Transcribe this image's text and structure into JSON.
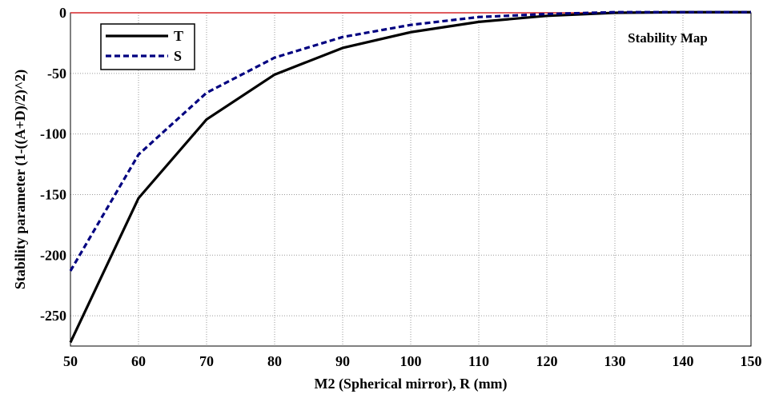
{
  "chart_data": {
    "type": "line",
    "title": "",
    "annotation": "Stability Map",
    "xlabel": "M2 (Spherical mirror), R (mm)",
    "ylabel": "Stability parameter (1-((A+D)/2)^2)",
    "xlim": [
      50,
      150
    ],
    "ylim": [
      -275,
      0
    ],
    "x_ticks": [
      50,
      60,
      70,
      80,
      90,
      100,
      110,
      120,
      130,
      140,
      150
    ],
    "y_ticks": [
      0,
      -50,
      -100,
      -150,
      -200,
      -250
    ],
    "x_tick_labels": [
      "50",
      "60",
      "70",
      "80",
      "90",
      "100",
      "110",
      "120",
      "130",
      "140",
      "150"
    ],
    "y_tick_labels": [
      "0",
      "-50",
      "-100",
      "-150",
      "-200",
      "-250"
    ],
    "grid": true,
    "legend_position": "top-left",
    "reference_line": {
      "y": 0,
      "color": "#d62728"
    },
    "x": [
      50,
      60,
      70,
      80,
      90,
      100,
      110,
      120,
      130,
      140,
      150
    ],
    "series": [
      {
        "name": "T",
        "color": "#000000",
        "style": "solid",
        "values": [
          -272,
          -153,
          -88,
          -51,
          -29,
          -16,
          -7.5,
          -2.5,
          0,
          0.5,
          0.5
        ]
      },
      {
        "name": "S",
        "color": "#000080",
        "style": "dashed",
        "values": [
          -213,
          -117,
          -66,
          -37,
          -20,
          -10,
          -3.5,
          -1,
          0.5,
          0.5,
          0.5
        ]
      }
    ]
  }
}
